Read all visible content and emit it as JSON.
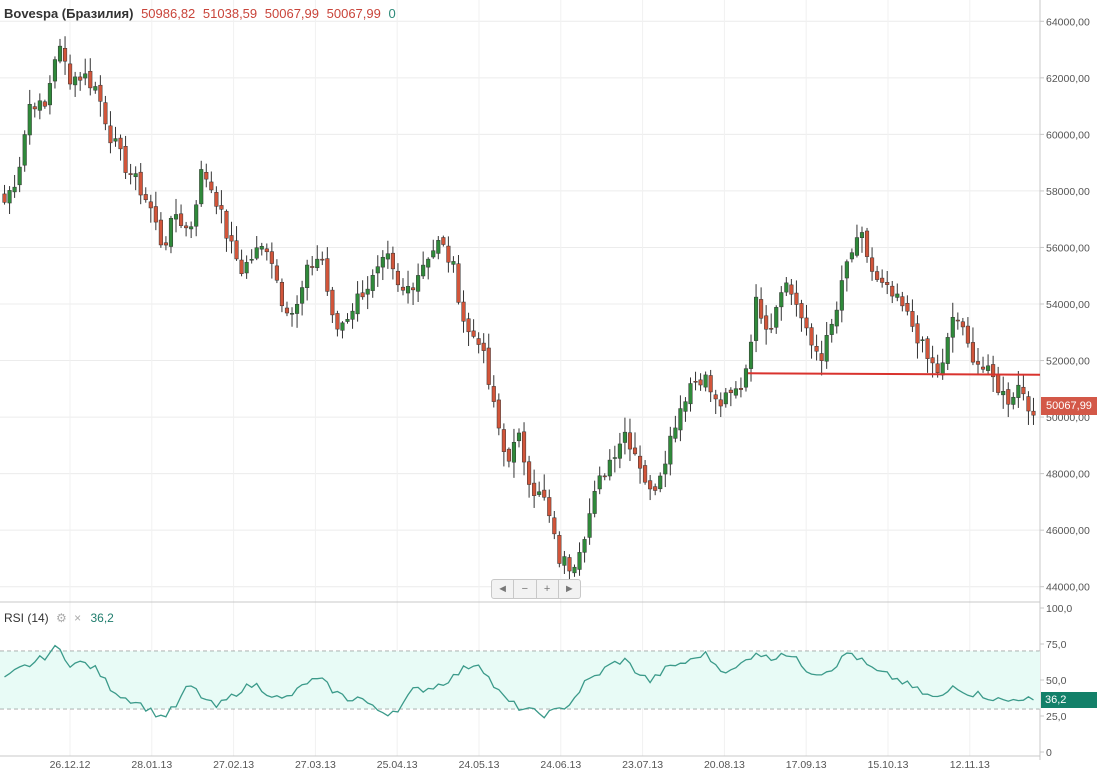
{
  "legend": {
    "symbol": "Bovespa (Бразилия)",
    "values": [
      "50986,82",
      "51038,59",
      "50067,99",
      "50067,99"
    ],
    "change": "0"
  },
  "rsi_legend": {
    "label": "RSI (14)",
    "gear_icon": "gear-icon",
    "close_icon": "close-icon",
    "value": "36,2"
  },
  "nav": {
    "left": "◄",
    "minus": "−",
    "plus": "+",
    "right": "►"
  },
  "price_badge": "50067,99",
  "rsi_badge": "36,2",
  "colors": {
    "up": "#2f8a3a",
    "down": "#d2553a",
    "rsi_line": "#3b9a8a",
    "rsi_band": "#e8fbf6",
    "level": "#d9332e"
  },
  "chart_data": [
    {
      "type": "candlestick",
      "y_ticks": [
        "64000,00",
        "62000,00",
        "60000,00",
        "58000,00",
        "56000,00",
        "54000,00",
        "52000,00",
        "50000,00",
        "48000,00",
        "46000,00",
        "44000,00"
      ],
      "ylim": [
        43600,
        64400
      ],
      "x_ticks": [
        "26.12.12",
        "28.01.13",
        "27.02.13",
        "27.03.13",
        "25.04.13",
        "24.05.13",
        "24.06.13",
        "23.07.13",
        "20.08.13",
        "17.09.13",
        "15.10.13",
        "12.11.13"
      ],
      "close_path": [
        57600,
        58600,
        61300,
        60800,
        63200,
        62000,
        62100,
        61600,
        60000,
        59000,
        58300,
        57500,
        56000,
        57200,
        56500,
        58800,
        57800,
        56200,
        55200,
        55800,
        56100,
        54200,
        53600,
        55200,
        55800,
        53000,
        53600,
        54400,
        54900,
        55600,
        54300,
        54800,
        55700,
        56200,
        55300,
        53000,
        52800,
        50500,
        48500,
        49200,
        47500,
        47000,
        45000,
        44700,
        46000,
        47600,
        48600,
        49500,
        48600,
        47200,
        48500,
        50100,
        51200,
        51500,
        50400,
        50700,
        51200,
        54100,
        53100,
        54900,
        54100,
        52600,
        52200,
        53600,
        55700,
        56300,
        54800,
        54400,
        53900,
        53100,
        52000,
        51500,
        53800,
        52500,
        51800,
        51300,
        50600,
        51200,
        50068
      ],
      "level_line": 51550,
      "last": 50067.99
    },
    {
      "type": "line",
      "title": "RSI (14)",
      "y_ticks": [
        "100,0",
        "75,0",
        "50,0",
        "25,0",
        "0"
      ],
      "ylim": [
        0,
        100
      ],
      "band": [
        30,
        70
      ],
      "values": [
        50,
        57,
        61,
        66,
        73,
        61,
        62,
        57,
        45,
        38,
        35,
        29,
        24,
        32,
        47,
        38,
        31,
        37,
        44,
        47,
        41,
        36,
        41,
        49,
        50,
        42,
        37,
        38,
        30,
        27,
        31,
        43,
        44,
        47,
        52,
        59,
        62,
        47,
        36,
        31,
        28,
        26,
        29,
        35,
        48,
        54,
        61,
        64,
        55,
        49,
        57,
        61,
        63,
        69,
        60,
        55,
        62,
        70,
        64,
        70,
        64,
        56,
        55,
        60,
        70,
        63,
        56,
        53,
        49,
        44,
        39,
        37,
        47,
        41,
        40,
        37,
        35,
        38,
        36.2
      ],
      "last": 36.2
    }
  ]
}
